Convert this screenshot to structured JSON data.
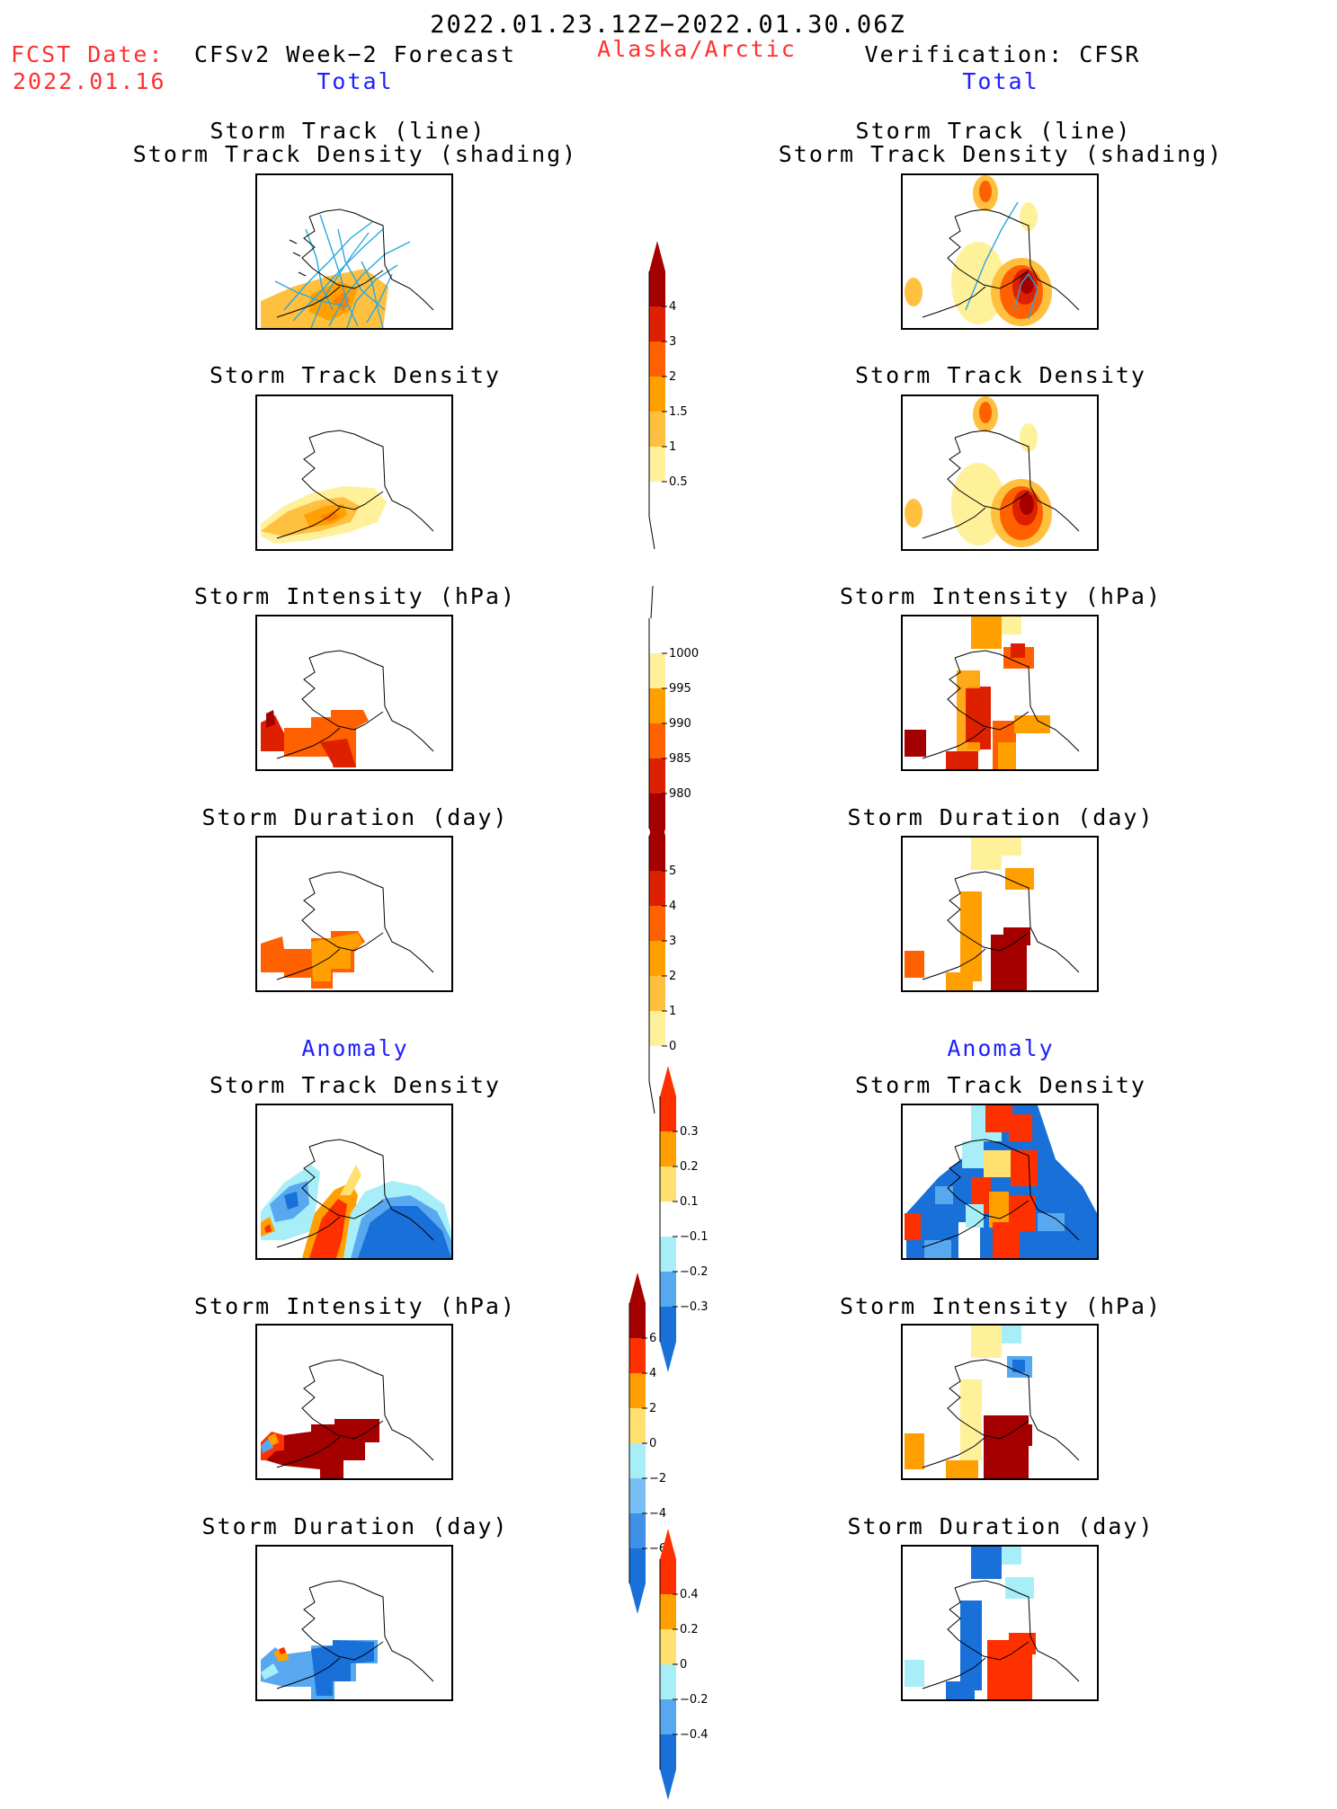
{
  "header": {
    "date_range": "2022.01.23.12Z−2022.01.30.06Z",
    "fcst_label": "FCST Date:",
    "fcst_date": "2022.01.16",
    "forecast_title": "CFSv2 Week−2 Forecast",
    "region": "Alaska/Arctic",
    "verification_title": "Verification: CFSR",
    "total_left": "Total",
    "total_right": "Total",
    "anomaly_left": "Anomaly",
    "anomaly_right": "Anomaly"
  },
  "panels": {
    "track_line": "Storm Track (line)",
    "track_shading": "Storm Track Density (shading)",
    "density": "Storm Track Density",
    "intensity": "Storm Intensity (hPa)",
    "duration": "Storm Duration (day)"
  },
  "colorbars": [
    {
      "id": "density_total",
      "arrow_top": true,
      "arrow_bottom": false,
      "colors": [
        "#a50000",
        "#dd2000",
        "#ff6000",
        "#ffa000",
        "#ffc040",
        "#fff09a",
        "#ffffff"
      ],
      "labels": [
        "4",
        "3",
        "2",
        "1.5",
        "1",
        "0.5"
      ]
    },
    {
      "id": "intensity_total",
      "arrow_top": false,
      "arrow_bottom": true,
      "colors": [
        "#ffffff",
        "#fff09a",
        "#ffa000",
        "#ff6000",
        "#dd2000",
        "#a50000"
      ],
      "labels": [
        "1000",
        "995",
        "990",
        "985",
        "980"
      ]
    },
    {
      "id": "duration_total",
      "arrow_top": true,
      "arrow_bottom": false,
      "colors": [
        "#a50000",
        "#dd2000",
        "#ff6000",
        "#ffa000",
        "#ffc040",
        "#fff09a",
        "#ffffff"
      ],
      "labels": [
        "5",
        "4",
        "3",
        "2",
        "1",
        "0"
      ]
    },
    {
      "id": "density_anom",
      "arrow_top": true,
      "arrow_bottom": true,
      "colors": [
        "#ff3000",
        "#ffa000",
        "#ffe070",
        "#ffffff",
        "#a8eef8",
        "#58a8f0",
        "#1870d8"
      ],
      "labels": [
        "0.3",
        "0.2",
        "0.1",
        "−0.1",
        "−0.2",
        "−0.3"
      ]
    },
    {
      "id": "intensity_anom",
      "arrow_top": true,
      "arrow_bottom": true,
      "colors": [
        "#a50000",
        "#ff3000",
        "#ffa000",
        "#ffe070",
        "#a8eef8",
        "#78c0f4",
        "#4090e8",
        "#1870d8"
      ],
      "labels": [
        "6",
        "4",
        "2",
        "0",
        "−2",
        "−4",
        "−6"
      ]
    },
    {
      "id": "duration_anom",
      "arrow_top": true,
      "arrow_bottom": true,
      "colors": [
        "#ff3000",
        "#ffa000",
        "#ffe070",
        "#a8eef8",
        "#58a8f0",
        "#1870d8"
      ],
      "labels": [
        "0.4",
        "0.2",
        "0",
        "−0.2",
        "−0.4"
      ]
    }
  ]
}
